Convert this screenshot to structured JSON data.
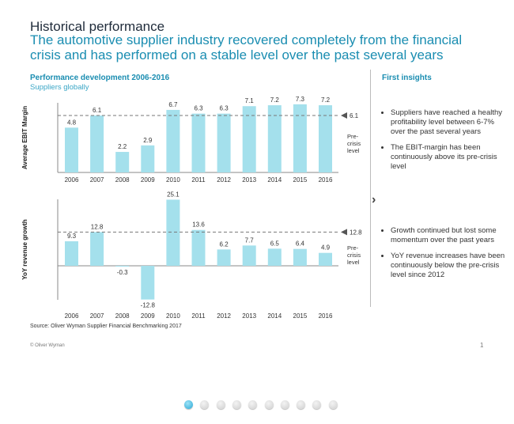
{
  "header": {
    "title": "Historical performance",
    "subtitle": "The automotive supplier industry recovered completely from the financial crisis and has performed on a stable level over the past several years"
  },
  "chart_section": {
    "title": "Performance development 2006-2016",
    "subtitle": "Suppliers globally",
    "source": "Source: Oliver Wyman Supplier Financial Benchmarking 2017"
  },
  "chart_data": [
    {
      "type": "bar",
      "ylabel": "Average EBIT Margin",
      "categories": [
        "2006",
        "2007",
        "2008",
        "2009",
        "2010",
        "2011",
        "2012",
        "2013",
        "2014",
        "2015",
        "2016"
      ],
      "values": [
        4.8,
        6.1,
        2.2,
        2.9,
        6.7,
        6.3,
        6.3,
        7.1,
        7.2,
        7.3,
        7.2
      ],
      "reference": {
        "value": 6.1,
        "label": "6.1",
        "note": "Pre-crisis level"
      },
      "color": "#a4e0ec",
      "grid": false
    },
    {
      "type": "bar",
      "ylabel": "YoY revenue growth",
      "categories": [
        "2006",
        "2007",
        "2008",
        "2009",
        "2010",
        "2011",
        "2012",
        "2013",
        "2014",
        "2015",
        "2016"
      ],
      "values": [
        9.3,
        12.8,
        -0.3,
        -12.8,
        25.1,
        13.6,
        6.2,
        7.7,
        6.5,
        6.4,
        4.9
      ],
      "reference": {
        "value": 12.8,
        "label": "12.8",
        "note": "Pre-crisis level"
      },
      "color": "#a4e0ec",
      "grid": false
    }
  ],
  "insights": {
    "title": "First insights",
    "group1": [
      "Suppliers have reached a healthy profitability level between 6-7% over the past several years",
      "The EBIT-margin has been continuously above its pre-crisis level"
    ],
    "group2": [
      "Growth continued but lost some momentum over the past years",
      "YoY revenue increases have been continuously below the pre-crisis level since 2012"
    ]
  },
  "footer": {
    "copyright": "© Oliver Wyman",
    "page": "1"
  },
  "pagination": {
    "count": 10,
    "active": 1
  },
  "colors": {
    "accent": "#1a8db1",
    "bar": "#a4e0ec"
  }
}
